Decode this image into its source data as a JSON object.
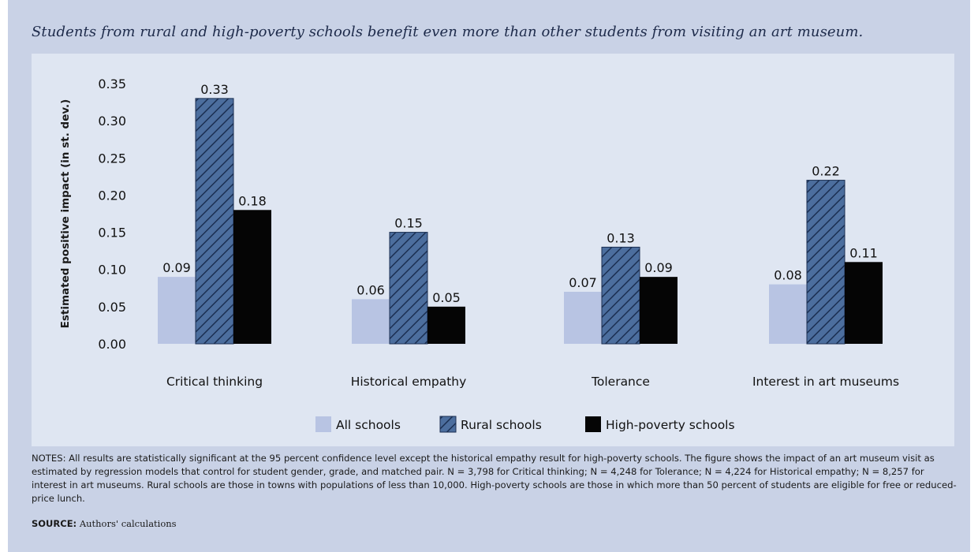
{
  "subtitle": "Students from rural and high-poverty schools benefit even more than other students from visiting an art museum.",
  "notes": "NOTES: All results are statistically significant at the 95 percent confidence level except the historical empathy result for high-poverty schools. The figure shows the impact of an art museum visit as estimated by regression models that control for student gender, grade, and matched pair. N = 3,798 for Critical thinking; N = 4,248 for Tolerance; N = 4,224 for Historical empathy; N = 8,257 for interest in art museums. Rural schools are those in towns with populations of less than 10,000. High-poverty schools are those in which more than 50 percent of students are eligible for free or reduced-price lunch.",
  "source_label": "SOURCE:",
  "source_text": "Authors' calculations",
  "colors": {
    "all_schools": "#b8c4e3",
    "rural_schools": "#4c6e9e",
    "high_poverty": "#050505",
    "panel": "#dfe6f2",
    "frame": "#c9d2e6"
  },
  "chart_data": {
    "type": "bar",
    "xlabel": "",
    "ylabel": "Estimated positive impact (in st. dev.)",
    "ylim": [
      0,
      0.35
    ],
    "yticks": [
      "0.00",
      "0.05",
      "0.10",
      "0.15",
      "0.20",
      "0.25",
      "0.30",
      "0.35"
    ],
    "categories": [
      "Critical thinking",
      "Historical empathy",
      "Tolerance",
      "Interest in art museums"
    ],
    "series": [
      {
        "name": "All schools",
        "values": [
          0.09,
          0.06,
          0.07,
          0.08
        ],
        "labels": [
          "0.09",
          "0.06",
          "0.07",
          "0.08"
        ],
        "pattern": "solid"
      },
      {
        "name": "Rural schools",
        "values": [
          0.33,
          0.15,
          0.13,
          0.22
        ],
        "labels": [
          "0.33",
          "0.15",
          "0.13",
          "0.22"
        ],
        "pattern": "hatched"
      },
      {
        "name": "High-poverty schools",
        "values": [
          0.18,
          0.05,
          0.09,
          0.11
        ],
        "labels": [
          "0.18",
          "0.05",
          "0.09",
          "0.11"
        ],
        "pattern": "solid"
      }
    ],
    "legend_position": "bottom-center",
    "grid": false
  }
}
